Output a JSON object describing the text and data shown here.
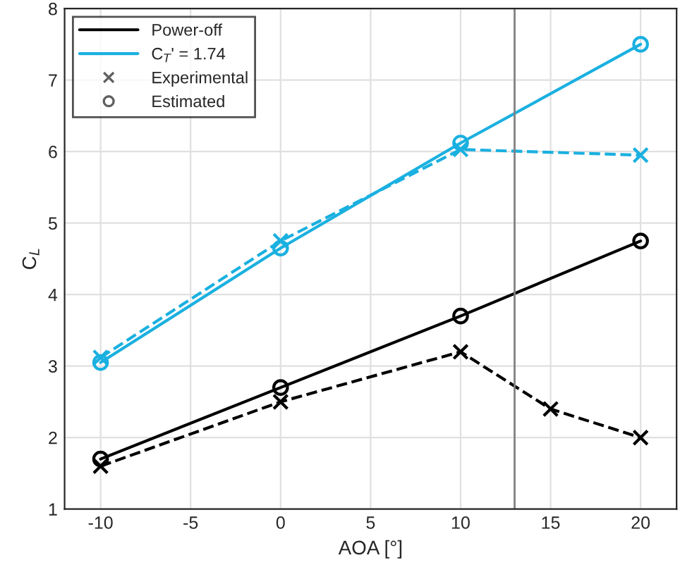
{
  "chart_data": {
    "type": "line",
    "xlabel": "AOA [°]",
    "ylabel": "C$_{L}$",
    "xlim": [
      -12,
      22
    ],
    "xticks": [
      -10,
      -5,
      0,
      5,
      10,
      15,
      20
    ],
    "ylim": [
      1,
      8
    ],
    "yticks": [
      1,
      2,
      3,
      4,
      5,
      6,
      7,
      8
    ],
    "grid": true,
    "legend": "top left",
    "series": [
      {
        "name": "Power-off",
        "color": "#000000",
        "x": [
          -10,
          0,
          10,
          20
        ],
        "values": [
          1.7,
          2.7,
          3.7,
          4.75
        ],
        "marker": "circle",
        "line_style": "solid"
      },
      {
        "name": "C$_{T}$' = 1.74",
        "color": "#1ab0e0",
        "x": [
          -10,
          0,
          10,
          20
        ],
        "values": [
          3.05,
          4.65,
          6.12,
          7.5
        ],
        "marker": "circle",
        "line_style": "solid"
      },
      {
        "color": "#000000",
        "x": [
          -10,
          0,
          10,
          15,
          20
        ],
        "values": [
          1.6,
          2.5,
          3.2,
          2.4,
          2.0
        ],
        "marker": "cross",
        "line_style": "dashed"
      },
      {
        "color": "#1ab0e0",
        "x": [
          -10,
          0,
          10,
          20
        ],
        "values": [
          3.12,
          4.75,
          6.03,
          5.95
        ],
        "marker": "cross",
        "line_style": "dashed"
      }
    ],
    "annotations": [
      "Experimental",
      "Estimated"
    ],
    "ref_lines": [
      {
        "axis": "x",
        "value": 13,
        "color": "#808080"
      }
    ]
  }
}
